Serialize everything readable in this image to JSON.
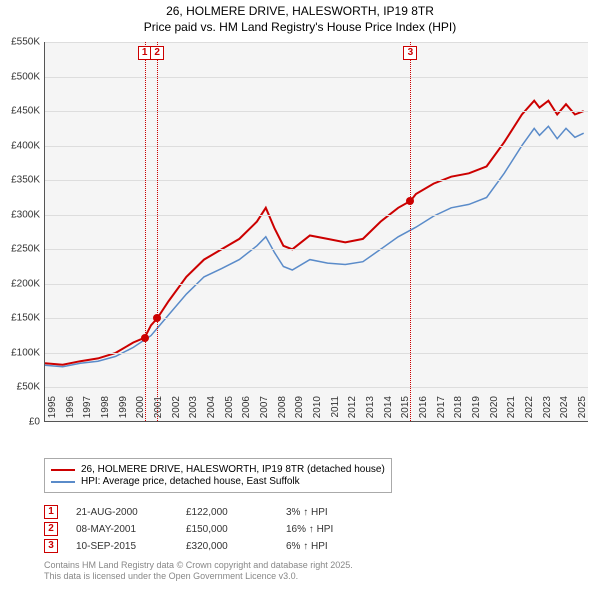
{
  "title_line1": "26, HOLMERE DRIVE, HALESWORTH, IP19 8TR",
  "title_line2": "Price paid vs. HM Land Registry's House Price Index (HPI)",
  "chart": {
    "type": "line",
    "background_color": "#f5f5f5",
    "grid_color": "#dddddd",
    "axis_color": "#555555",
    "x_min": 1995,
    "x_max": 2025.8,
    "x_ticks": [
      1995,
      1996,
      1997,
      1998,
      1999,
      2000,
      2001,
      2002,
      2003,
      2004,
      2005,
      2006,
      2007,
      2008,
      2009,
      2010,
      2011,
      2012,
      2013,
      2014,
      2015,
      2016,
      2017,
      2018,
      2019,
      2020,
      2021,
      2022,
      2023,
      2024,
      2025
    ],
    "y_min": 0,
    "y_max": 550000,
    "y_ticks": [
      0,
      50000,
      100000,
      150000,
      200000,
      250000,
      300000,
      350000,
      400000,
      450000,
      500000,
      550000
    ],
    "y_tick_labels": [
      "£0",
      "£50K",
      "£100K",
      "£150K",
      "£200K",
      "£250K",
      "£300K",
      "£350K",
      "£400K",
      "£450K",
      "£500K",
      "£550K"
    ],
    "series": [
      {
        "name": "price_paid",
        "label": "26, HOLMERE DRIVE, HALESWORTH, IP19 8TR (detached house)",
        "color": "#cc0000",
        "line_width": 2,
        "data": [
          [
            1995,
            85000
          ],
          [
            1996,
            83000
          ],
          [
            1997,
            88000
          ],
          [
            1998,
            92000
          ],
          [
            1999,
            100000
          ],
          [
            2000,
            115000
          ],
          [
            2000.64,
            122000
          ],
          [
            2001,
            140000
          ],
          [
            2001.35,
            150000
          ],
          [
            2002,
            175000
          ],
          [
            2003,
            210000
          ],
          [
            2004,
            235000
          ],
          [
            2005,
            250000
          ],
          [
            2006,
            265000
          ],
          [
            2007,
            290000
          ],
          [
            2007.5,
            310000
          ],
          [
            2008,
            280000
          ],
          [
            2008.5,
            255000
          ],
          [
            2009,
            250000
          ],
          [
            2010,
            270000
          ],
          [
            2011,
            265000
          ],
          [
            2012,
            260000
          ],
          [
            2013,
            265000
          ],
          [
            2014,
            290000
          ],
          [
            2015,
            310000
          ],
          [
            2015.7,
            320000
          ],
          [
            2016,
            330000
          ],
          [
            2017,
            345000
          ],
          [
            2018,
            355000
          ],
          [
            2019,
            360000
          ],
          [
            2020,
            370000
          ],
          [
            2021,
            405000
          ],
          [
            2022,
            445000
          ],
          [
            2022.7,
            465000
          ],
          [
            2023,
            455000
          ],
          [
            2023.5,
            465000
          ],
          [
            2024,
            445000
          ],
          [
            2024.5,
            460000
          ],
          [
            2025,
            445000
          ],
          [
            2025.5,
            450000
          ]
        ]
      },
      {
        "name": "hpi",
        "label": "HPI: Average price, detached house, East Suffolk",
        "color": "#5a8bc9",
        "line_width": 1.5,
        "data": [
          [
            1995,
            82000
          ],
          [
            1996,
            80000
          ],
          [
            1997,
            85000
          ],
          [
            1998,
            88000
          ],
          [
            1999,
            95000
          ],
          [
            2000,
            108000
          ],
          [
            2001,
            125000
          ],
          [
            2002,
            155000
          ],
          [
            2003,
            185000
          ],
          [
            2004,
            210000
          ],
          [
            2005,
            222000
          ],
          [
            2006,
            235000
          ],
          [
            2007,
            255000
          ],
          [
            2007.5,
            268000
          ],
          [
            2008,
            245000
          ],
          [
            2008.5,
            225000
          ],
          [
            2009,
            220000
          ],
          [
            2010,
            235000
          ],
          [
            2011,
            230000
          ],
          [
            2012,
            228000
          ],
          [
            2013,
            232000
          ],
          [
            2014,
            250000
          ],
          [
            2015,
            268000
          ],
          [
            2016,
            282000
          ],
          [
            2017,
            298000
          ],
          [
            2018,
            310000
          ],
          [
            2019,
            315000
          ],
          [
            2020,
            325000
          ],
          [
            2021,
            360000
          ],
          [
            2022,
            400000
          ],
          [
            2022.7,
            425000
          ],
          [
            2023,
            415000
          ],
          [
            2023.5,
            428000
          ],
          [
            2024,
            410000
          ],
          [
            2024.5,
            425000
          ],
          [
            2025,
            412000
          ],
          [
            2025.5,
            418000
          ]
        ]
      }
    ],
    "sale_markers": [
      {
        "num": "1",
        "x": 2000.64,
        "y": 122000,
        "color": "#cc0000"
      },
      {
        "num": "2",
        "x": 2001.35,
        "y": 150000,
        "color": "#cc0000"
      },
      {
        "num": "3",
        "x": 2015.69,
        "y": 320000,
        "color": "#cc0000"
      }
    ]
  },
  "legend": {
    "items": [
      {
        "color": "#cc0000",
        "label": "26, HOLMERE DRIVE, HALESWORTH, IP19 8TR (detached house)"
      },
      {
        "color": "#5a8bc9",
        "label": "HPI: Average price, detached house, East Suffolk"
      }
    ]
  },
  "sales": [
    {
      "num": "1",
      "color": "#cc0000",
      "date": "21-AUG-2000",
      "price": "£122,000",
      "pct": "3% ↑ HPI"
    },
    {
      "num": "2",
      "color": "#cc0000",
      "date": "08-MAY-2001",
      "price": "£150,000",
      "pct": "16% ↑ HPI"
    },
    {
      "num": "3",
      "color": "#cc0000",
      "date": "10-SEP-2015",
      "price": "£320,000",
      "pct": "6% ↑ HPI"
    }
  ],
  "footer_line1": "Contains HM Land Registry data © Crown copyright and database right 2025.",
  "footer_line2": "This data is licensed under the Open Government Licence v3.0."
}
